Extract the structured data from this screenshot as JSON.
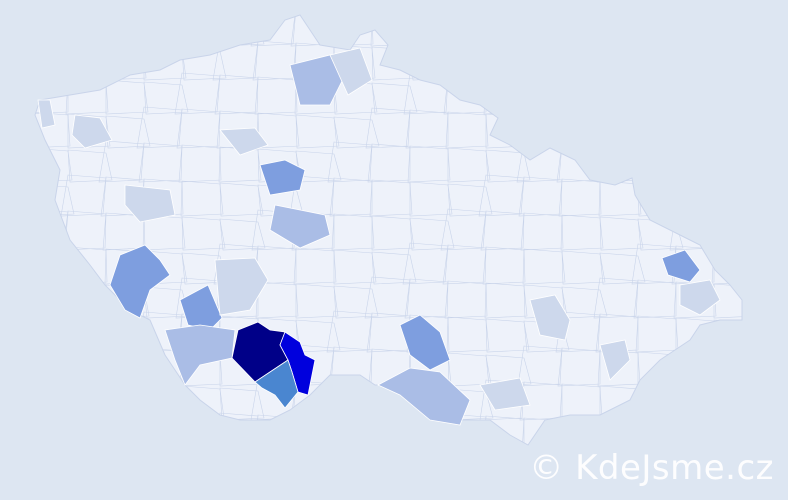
{
  "map": {
    "colors": {
      "background": "#dde6f2",
      "base": "#eef2fa",
      "border": "#c9d4ea",
      "level1": "#cdd8ec",
      "level2": "#aabde6",
      "level3": "#7e9edf",
      "level4": "#4a86d0",
      "level5": "#0000dd",
      "level6": "#000088"
    }
  },
  "watermark": "© KdeJsme.cz"
}
